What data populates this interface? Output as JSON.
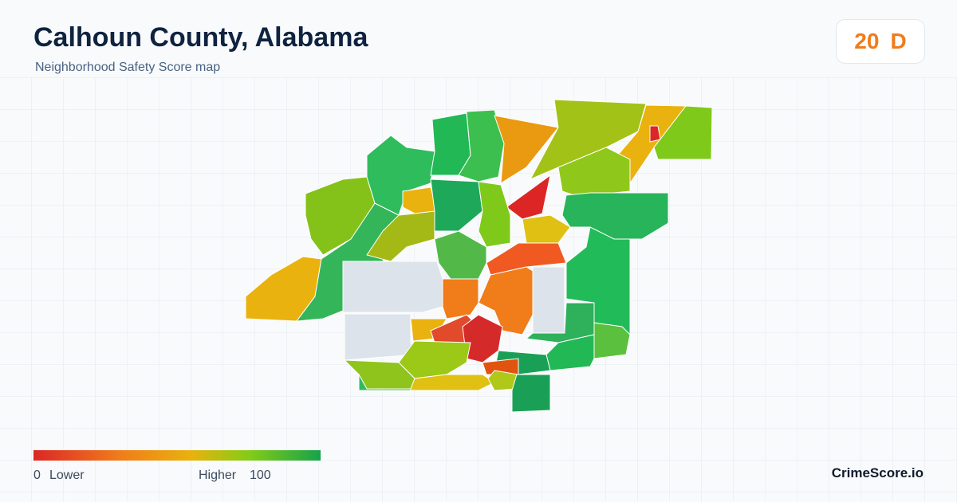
{
  "header": {
    "title": "Calhoun County, Alabama",
    "subtitle": "Neighborhood Safety Score map"
  },
  "badge": {
    "score": 20,
    "grade": "D"
  },
  "legend": {
    "min": 0,
    "min_label": "Lower",
    "max_label": "Higher",
    "max": 100
  },
  "footer": {
    "brand": "CrimeScore.io"
  }
}
